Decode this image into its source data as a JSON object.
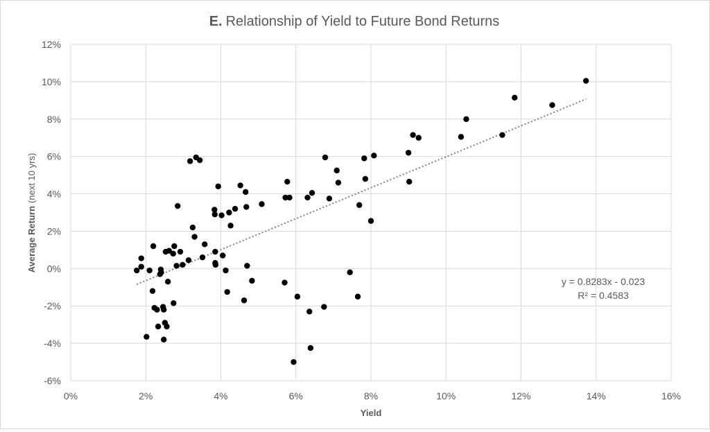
{
  "chart_data": {
    "type": "scatter",
    "title_prefix": "E.",
    "title": "Relationship of Yield to Future Bond Returns",
    "xlabel": "Yield",
    "ylabel_bold": "Average Return",
    "ylabel_rest": "(next 10 yrs)",
    "xlim": [
      0,
      0.16
    ],
    "ylim": [
      -0.06,
      0.12
    ],
    "x_ticks": [
      0,
      0.02,
      0.04,
      0.06,
      0.08,
      0.1,
      0.12,
      0.14,
      0.16
    ],
    "y_ticks": [
      -0.06,
      -0.04,
      -0.02,
      0,
      0.02,
      0.04,
      0.06,
      0.08,
      0.1,
      0.12
    ],
    "x_tick_labels": [
      "0%",
      "2%",
      "4%",
      "6%",
      "8%",
      "10%",
      "12%",
      "14%",
      "16%"
    ],
    "y_tick_labels": [
      "-6%",
      "-4%",
      "-2%",
      "0%",
      "2%",
      "4%",
      "6%",
      "8%",
      "10%",
      "12%"
    ],
    "grid": true,
    "trendline": {
      "type": "linear",
      "slope": 0.8283,
      "intercept": -0.023,
      "x_range": [
        0.0176,
        0.1373
      ],
      "equation_label": "y = 0.8283x - 0.023",
      "r2_label": "R² = 0.4583"
    },
    "marker_color": "#000000",
    "trend_color": "#7f7f7f",
    "grid_color": "#d9d9d9",
    "points": [
      [
        0.0176,
        -0.001
      ],
      [
        0.0188,
        0.001
      ],
      [
        0.0188,
        0.0055
      ],
      [
        0.0202,
        -0.0365
      ],
      [
        0.021,
        -0.001
      ],
      [
        0.0218,
        -0.012
      ],
      [
        0.022,
        0.012
      ],
      [
        0.0223,
        -0.021
      ],
      [
        0.023,
        -0.022
      ],
      [
        0.0233,
        -0.031
      ],
      [
        0.0238,
        -0.003
      ],
      [
        0.024,
        -0.0005
      ],
      [
        0.0241,
        -0.002
      ],
      [
        0.0246,
        -0.0205
      ],
      [
        0.0248,
        -0.022
      ],
      [
        0.0248,
        -0.038
      ],
      [
        0.0251,
        -0.029
      ],
      [
        0.0253,
        0.009
      ],
      [
        0.0256,
        -0.031
      ],
      [
        0.0259,
        -0.007
      ],
      [
        0.0262,
        0.0095
      ],
      [
        0.0273,
        0.008
      ],
      [
        0.0274,
        -0.0185
      ],
      [
        0.0276,
        0.012
      ],
      [
        0.0282,
        0.0015
      ],
      [
        0.0285,
        0.0335
      ],
      [
        0.0292,
        0.009
      ],
      [
        0.0298,
        0.002
      ],
      [
        0.0314,
        0.0045
      ],
      [
        0.0318,
        0.0575
      ],
      [
        0.0325,
        0.022
      ],
      [
        0.033,
        0.017
      ],
      [
        0.0334,
        0.0595
      ],
      [
        0.0344,
        0.058
      ],
      [
        0.0351,
        0.006
      ],
      [
        0.0357,
        0.013
      ],
      [
        0.0383,
        0.0315
      ],
      [
        0.0384,
        0.029
      ],
      [
        0.0385,
        0.009
      ],
      [
        0.0385,
        0.003
      ],
      [
        0.0386,
        0.002
      ],
      [
        0.0393,
        0.044
      ],
      [
        0.0402,
        0.0285
      ],
      [
        0.0405,
        0.007
      ],
      [
        0.0413,
        -0.001
      ],
      [
        0.0417,
        -0.0125
      ],
      [
        0.0422,
        0.03
      ],
      [
        0.0426,
        0.023
      ],
      [
        0.0438,
        0.032
      ],
      [
        0.0452,
        0.0445
      ],
      [
        0.0462,
        -0.017
      ],
      [
        0.0466,
        0.041
      ],
      [
        0.0468,
        0.033
      ],
      [
        0.047,
        0.0015
      ],
      [
        0.0483,
        -0.0065
      ],
      [
        0.0509,
        0.0345
      ],
      [
        0.057,
        -0.0075
      ],
      [
        0.0572,
        0.038
      ],
      [
        0.0577,
        0.0465
      ],
      [
        0.0583,
        0.038
      ],
      [
        0.0594,
        -0.05
      ],
      [
        0.0604,
        -0.015
      ],
      [
        0.0631,
        0.038
      ],
      [
        0.0636,
        -0.023
      ],
      [
        0.0639,
        -0.0425
      ],
      [
        0.0643,
        0.0405
      ],
      [
        0.0675,
        -0.0205
      ],
      [
        0.0678,
        0.0595
      ],
      [
        0.0689,
        0.0375
      ],
      [
        0.0709,
        0.0525
      ],
      [
        0.0713,
        0.046
      ],
      [
        0.0744,
        -0.002
      ],
      [
        0.0765,
        -0.015
      ],
      [
        0.0769,
        0.034
      ],
      [
        0.0782,
        0.059
      ],
      [
        0.0785,
        0.048
      ],
      [
        0.08,
        0.0255
      ],
      [
        0.0808,
        0.0605
      ],
      [
        0.09,
        0.062
      ],
      [
        0.0902,
        0.0465
      ],
      [
        0.0912,
        0.0715
      ],
      [
        0.0927,
        0.07
      ],
      [
        0.104,
        0.0705
      ],
      [
        0.1054,
        0.08
      ],
      [
        0.115,
        0.0715
      ],
      [
        0.1183,
        0.0915
      ],
      [
        0.1283,
        0.0875
      ],
      [
        0.1373,
        0.1005
      ]
    ]
  }
}
